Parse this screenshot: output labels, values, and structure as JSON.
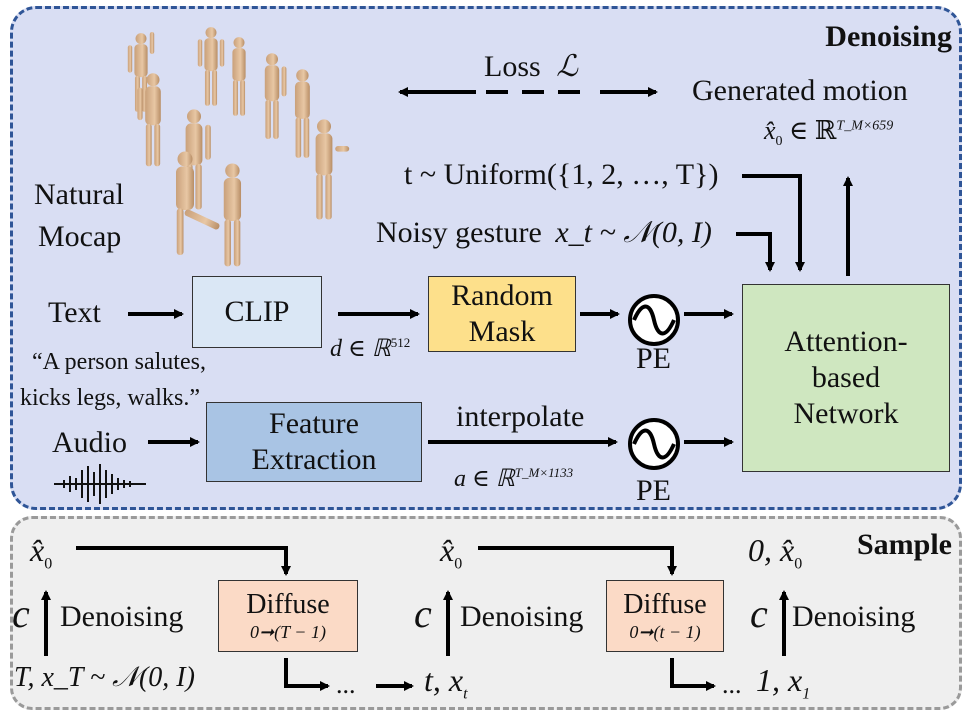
{
  "denoising": {
    "title": "Denoising",
    "loss": "Loss",
    "loss_symbol": "ℒ",
    "generated_motion": "Generated motion",
    "x0_formula": "x̂₀ ∈ ℝ^{T_M×659}",
    "x0_main": "x̂",
    "x0_sub": "0",
    "x0_in": "∈ ℝ",
    "x0_sup": "T_M×659",
    "t_uniform": "t ~ Uniform({1, 2, …, T})",
    "noisy_gesture": "Noisy gesture",
    "noisy_formula": "x_t ~ 𝒩(0, I)",
    "natural": "Natural",
    "mocap": "Mocap",
    "text_label": "Text",
    "clip_label": "CLIP",
    "d_formula": "d ∈ ℝ",
    "d_sup": "512",
    "random_label": "Random",
    "mask_label": "Mask",
    "pe_label_1": "PE",
    "pe_label_2": "PE",
    "quote_line1": "“A person salutes,",
    "quote_line2": "kicks legs, walks.”",
    "audio_label": "Audio",
    "feature_label": "Feature",
    "extraction_label": "Extraction",
    "interpolate_label": "interpolate",
    "a_formula": "a ∈ ℝ",
    "a_sup": "T_M×1133",
    "attention_line1": "Attention-",
    "attention_line2": "based",
    "attention_line3": "Network"
  },
  "sample": {
    "title": "Sample",
    "x0_left": "x̂",
    "x0_left_sub": "0",
    "c_label": "c",
    "denoising": "Denoising",
    "diffuse": "Diffuse",
    "diffuse_range1": "0➞(T − 1)",
    "diffuse_range2": "0➞(t − 1)",
    "start_formula": "T, x_T ~ 𝒩(0, I)",
    "ellipsis": "...",
    "t_xt": "t, x",
    "t_xt_sub": "t",
    "x0_mid": "x̂",
    "x0_mid_sub": "0",
    "final_top": "0, x̂",
    "final_top_sub": "0",
    "one_x1": "1, x",
    "one_x1_sub": "1"
  },
  "colors": {
    "denoise_bg": "#d9def3",
    "denoise_border": "#2f5597",
    "sample_bg": "#efefef",
    "clip_box": "#dae7f5",
    "random_mask_box": "#fde08b",
    "feature_box": "#a9c4e4",
    "attention_box": "#cfe7c0",
    "diffuse_box": "#fbdac6"
  },
  "icons": [
    "human-figures-image",
    "audio-waveform-icon",
    "positional-encoding-icon"
  ]
}
